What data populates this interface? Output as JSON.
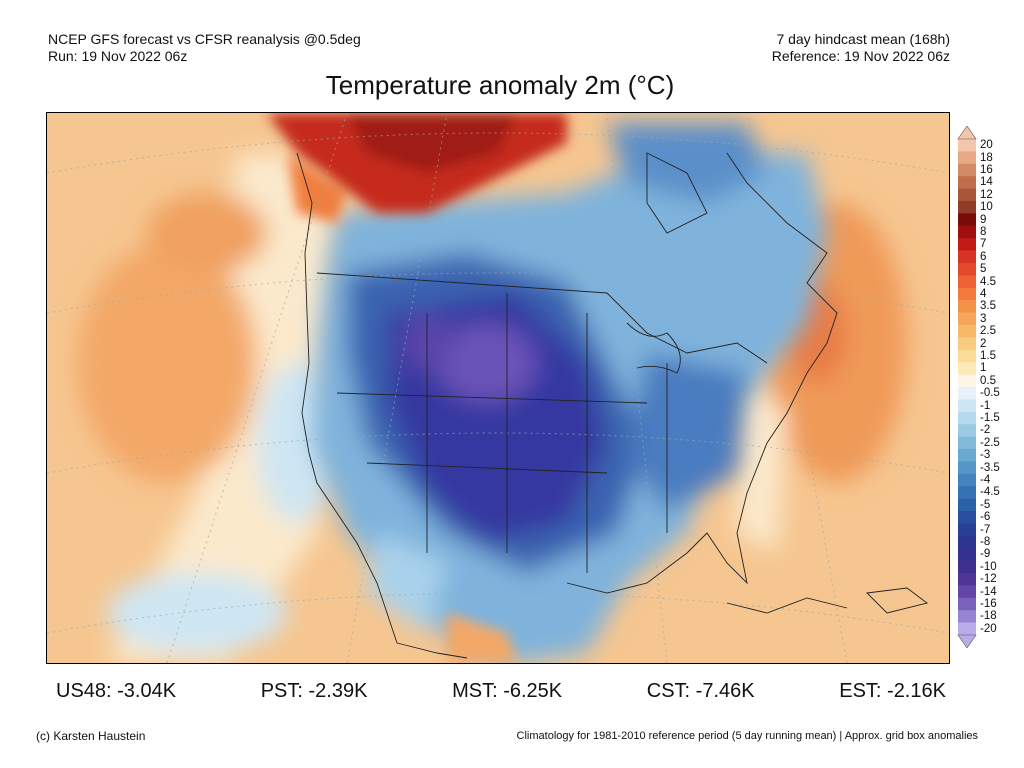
{
  "header": {
    "left_line1": "NCEP GFS forecast vs CFSR reanalysis @0.5deg",
    "left_line2": "Run: 19 Nov 2022 06z",
    "right_line1": "7 day hindcast mean (168h)",
    "right_line2": "Reference: 19 Nov 2022 06z"
  },
  "title": "Temperature anomaly 2m (°C)",
  "colorbar": {
    "labels": [
      "20",
      "18",
      "16",
      "14",
      "12",
      "10",
      "9",
      "8",
      "7",
      "6",
      "5",
      "4.5",
      "4",
      "3.5",
      "3",
      "2.5",
      "2",
      "1.5",
      "1",
      "0.5",
      "-0.5",
      "-1",
      "-1.5",
      "-2",
      "-2.5",
      "-3",
      "-3.5",
      "-4",
      "-4.5",
      "-5",
      "-6",
      "-7",
      "-8",
      "-9",
      "-10",
      "-12",
      "-14",
      "-16",
      "-18",
      "-20"
    ],
    "colors": [
      "#f3c6ad",
      "#e8a987",
      "#d38a67",
      "#bf6d4b",
      "#a9553a",
      "#8f3c29",
      "#7a0b0b",
      "#a00f10",
      "#c21a17",
      "#d73226",
      "#e3492c",
      "#ec6233",
      "#f17a3c",
      "#f39149",
      "#f5a65a",
      "#f6b969",
      "#f8cc80",
      "#f9dc98",
      "#fbeab8",
      "#fdf6e6",
      "#e6f1f9",
      "#cfe6f3",
      "#b7d9ed",
      "#9ccae4",
      "#82bada",
      "#69a8d1",
      "#5596c7",
      "#4483bd",
      "#3672b3",
      "#2c60a7",
      "#28509e",
      "#284197",
      "#2b3590",
      "#33308e",
      "#3f2f91",
      "#503597",
      "#6346a6",
      "#7961bc",
      "#9785d2",
      "#b9acea"
    ]
  },
  "stats": {
    "us48": "US48: -3.04K",
    "pst": "PST: -2.39K",
    "mst": "MST: -6.25K",
    "cst": "CST: -7.46K",
    "est": "EST: -2.16K"
  },
  "footer": {
    "left": "(c) Karsten Haustein",
    "right": "Climatology for 1981-2010 reference period (5 day running mean) | Approx. grid box anomalies"
  }
}
